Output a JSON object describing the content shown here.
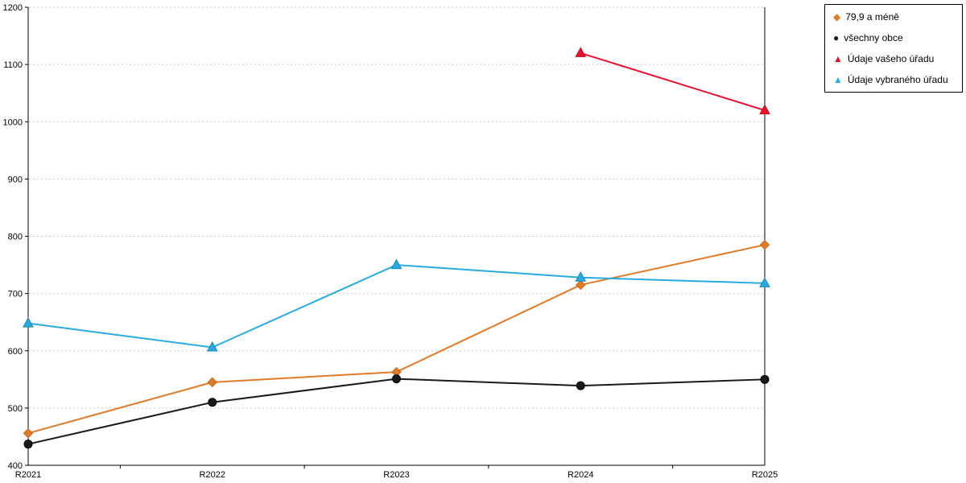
{
  "chart_data": {
    "type": "line",
    "title": "",
    "xlabel": "",
    "ylabel": "",
    "categories": [
      "R2021",
      "R2022",
      "R2023",
      "R2024",
      "R2025"
    ],
    "series": [
      {
        "name": "79,9 a méně",
        "color": "#e07b28",
        "edge": "#c8621a",
        "marker": "diamond",
        "values": [
          456,
          545,
          563,
          715,
          785
        ]
      },
      {
        "name": "všechny obce",
        "color": "#1a1a1a",
        "edge": "#000000",
        "marker": "circle",
        "values": [
          437,
          510,
          551,
          539,
          550
        ]
      },
      {
        "name": "Údaje vašeho úřadu",
        "color": "#e8112d",
        "edge": "#c50d24",
        "marker": "triangle",
        "values": [
          null,
          null,
          null,
          1120,
          1020
        ]
      },
      {
        "name": "Údaje vybraného úřadu",
        "color": "#29abe2",
        "edge": "#1587b8",
        "marker": "triangle",
        "values": [
          648,
          606,
          750,
          728,
          718
        ]
      }
    ],
    "ylim": [
      400,
      1200
    ],
    "ytick_step": 100,
    "grid": true,
    "gridline_color": "#c8c8c8",
    "legend_position": "top-right"
  }
}
